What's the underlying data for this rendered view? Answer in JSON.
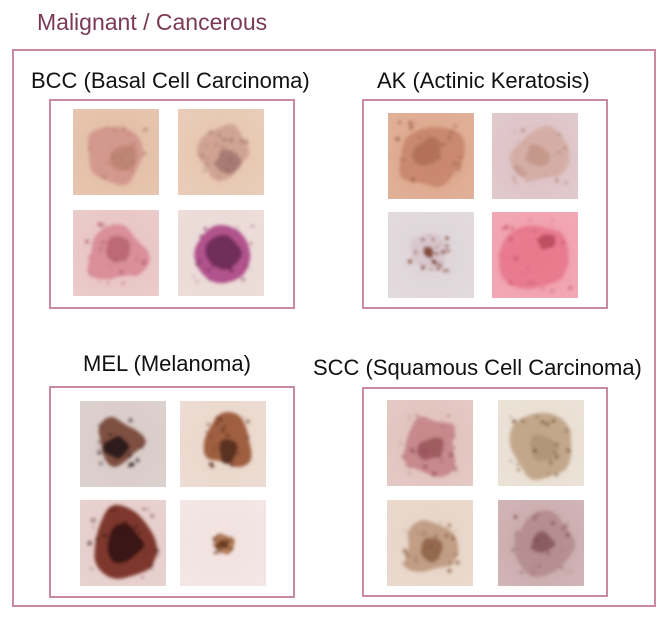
{
  "page": {
    "title": "Malignant / Cancerous"
  },
  "groups": [
    {
      "title": "BCC (Basal Cell Carcinoma)",
      "thumbs": [
        {
          "kind": "bcc-pinkish-patch",
          "skin": "#e2bca2",
          "lesion": "#cf8f88",
          "dark": "#b27a66"
        },
        {
          "kind": "bcc-telangiectasia",
          "skin": "#e6c4ad",
          "lesion": "#b98177",
          "dark": "#8d6160"
        },
        {
          "kind": "bcc-pink-nodule",
          "skin": "#e8c2c2",
          "lesion": "#d88a94",
          "dark": "#b05d68"
        },
        {
          "kind": "bcc-purple-ulcer",
          "skin": "#ead8d4",
          "lesion": "#b0508c",
          "dark": "#6a2c55"
        }
      ]
    },
    {
      "title": "AK (Actinic Keratosis)",
      "thumbs": [
        {
          "kind": "ak-scaly-red",
          "skin": "#dba487",
          "lesion": "#c07a63",
          "dark": "#9d5c4a"
        },
        {
          "kind": "ak-pink-plaque",
          "skin": "#dcc0c4",
          "lesion": "#cc9c8a",
          "dark": "#b07a68"
        },
        {
          "kind": "ak-small-brown",
          "skin": "#ded4d8",
          "lesion": "#c6a6ae",
          "dark": "#7a3f2a"
        },
        {
          "kind": "ak-vivid-red",
          "skin": "#f09aa8",
          "lesion": "#e46f84",
          "dark": "#b94a5c"
        }
      ]
    },
    {
      "title": "MEL (Melanoma)",
      "thumbs": [
        {
          "kind": "mel-dark-irregular",
          "skin": "#d7c9c6",
          "lesion": "#7a4a3a",
          "dark": "#2e1f1c"
        },
        {
          "kind": "mel-brown-mottled",
          "skin": "#ead6ca",
          "lesion": "#9c5a3a",
          "dark": "#5a3222"
        },
        {
          "kind": "mel-large-dark",
          "skin": "#e4cac7",
          "lesion": "#7a3428",
          "dark": "#3a1812"
        },
        {
          "kind": "mel-small-brown",
          "skin": "#f1e2e0",
          "lesion": "#b47a52",
          "dark": "#6e3e22"
        }
      ]
    },
    {
      "title": "SCC (Squamous Cell Carcinoma)",
      "thumbs": [
        {
          "kind": "scc-red-patch",
          "skin": "#e0c0ba",
          "lesion": "#c07a80",
          "dark": "#8e4a50"
        },
        {
          "kind": "scc-brown-ring",
          "skin": "#e8ddd0",
          "lesion": "#a8825a",
          "dark": "#6e4e30"
        },
        {
          "kind": "scc-tan-blotch",
          "skin": "#e6d3c5",
          "lesion": "#b08668",
          "dark": "#8a5e42"
        },
        {
          "kind": "scc-mauve-patch",
          "skin": "#c9a8aa",
          "lesion": "#a77a7e",
          "dark": "#7a4a4e"
        }
      ]
    }
  ]
}
